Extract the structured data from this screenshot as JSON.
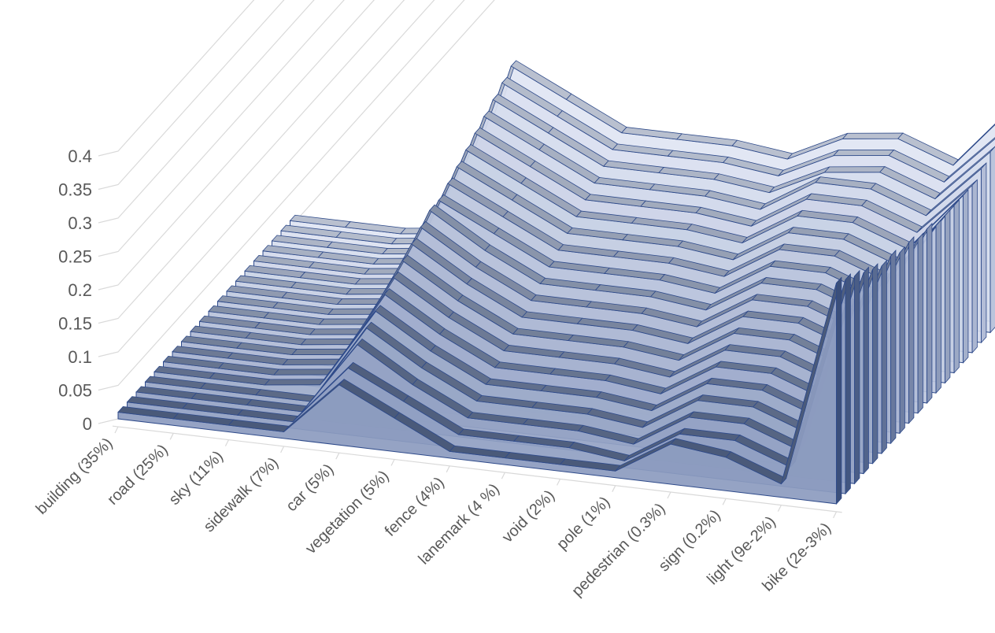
{
  "chart_data": {
    "type": "area",
    "subtype": "3d-area",
    "title": "",
    "xlabel": "",
    "ylabel": "",
    "categories": [
      "building (35%)",
      "road (25%)",
      "sky (11%)",
      "sidewalk (7%)",
      "car (5%)",
      "vegetation (5%)",
      "fence  (4%)",
      "lanemark (4 %)",
      "void (2%)",
      "pole (1%)",
      "pedestrian (0.3%)",
      "sign (0.2%)",
      "light (9e-2%)",
      "bike (2e-3%)"
    ],
    "y_ticks": [
      "0",
      "0.05",
      "0.1",
      "0.15",
      "0.2",
      "0.25",
      "0.3",
      "0.35",
      "0.4"
    ],
    "ylim": [
      0,
      0.4
    ],
    "grid": true,
    "legend": "none",
    "series_count": 20,
    "series": [
      {
        "values": [
          0.01,
          0.01,
          0.01,
          0.01,
          0.09,
          0.05,
          0.01,
          0.01,
          0.01,
          0.01,
          0.06,
          0.05,
          0.02,
          0.33
        ]
      },
      {
        "values": [
          0.01,
          0.01,
          0.01,
          0.01,
          0.1,
          0.06,
          0.02,
          0.02,
          0.02,
          0.01,
          0.06,
          0.06,
          0.03,
          0.32
        ]
      },
      {
        "values": [
          0.01,
          0.01,
          0.01,
          0.01,
          0.12,
          0.07,
          0.03,
          0.03,
          0.03,
          0.02,
          0.07,
          0.07,
          0.04,
          0.31
        ]
      },
      {
        "values": [
          0.01,
          0.01,
          0.01,
          0.01,
          0.13,
          0.08,
          0.04,
          0.04,
          0.04,
          0.03,
          0.08,
          0.08,
          0.05,
          0.3
        ]
      },
      {
        "values": [
          0.01,
          0.01,
          0.01,
          0.02,
          0.14,
          0.09,
          0.05,
          0.05,
          0.05,
          0.04,
          0.09,
          0.09,
          0.06,
          0.29
        ]
      },
      {
        "values": [
          0.01,
          0.01,
          0.01,
          0.02,
          0.15,
          0.1,
          0.06,
          0.06,
          0.06,
          0.05,
          0.1,
          0.1,
          0.07,
          0.28
        ]
      },
      {
        "values": [
          0.01,
          0.01,
          0.01,
          0.02,
          0.16,
          0.11,
          0.07,
          0.07,
          0.07,
          0.06,
          0.11,
          0.11,
          0.08,
          0.28
        ]
      },
      {
        "values": [
          0.01,
          0.01,
          0.01,
          0.02,
          0.17,
          0.12,
          0.08,
          0.08,
          0.08,
          0.07,
          0.12,
          0.12,
          0.09,
          0.27
        ]
      },
      {
        "values": [
          0.01,
          0.01,
          0.01,
          0.02,
          0.18,
          0.13,
          0.09,
          0.09,
          0.09,
          0.08,
          0.13,
          0.13,
          0.1,
          0.27
        ]
      },
      {
        "values": [
          0.01,
          0.01,
          0.01,
          0.02,
          0.19,
          0.14,
          0.1,
          0.1,
          0.1,
          0.09,
          0.14,
          0.14,
          0.11,
          0.26
        ]
      },
      {
        "values": [
          0.01,
          0.01,
          0.01,
          0.02,
          0.2,
          0.15,
          0.11,
          0.11,
          0.11,
          0.1,
          0.15,
          0.15,
          0.12,
          0.26
        ]
      },
      {
        "values": [
          0.01,
          0.01,
          0.01,
          0.02,
          0.2,
          0.16,
          0.12,
          0.12,
          0.12,
          0.11,
          0.16,
          0.16,
          0.13,
          0.25
        ]
      },
      {
        "values": [
          0.01,
          0.01,
          0.01,
          0.02,
          0.21,
          0.17,
          0.13,
          0.13,
          0.13,
          0.12,
          0.17,
          0.17,
          0.14,
          0.25
        ]
      },
      {
        "values": [
          0.01,
          0.01,
          0.01,
          0.02,
          0.22,
          0.18,
          0.14,
          0.14,
          0.14,
          0.13,
          0.18,
          0.18,
          0.15,
          0.25
        ]
      },
      {
        "values": [
          0.01,
          0.01,
          0.01,
          0.02,
          0.23,
          0.19,
          0.15,
          0.15,
          0.15,
          0.14,
          0.19,
          0.19,
          0.16,
          0.25
        ]
      },
      {
        "values": [
          0.01,
          0.01,
          0.01,
          0.02,
          0.24,
          0.2,
          0.16,
          0.16,
          0.16,
          0.15,
          0.2,
          0.2,
          0.17,
          0.25
        ]
      },
      {
        "values": [
          0.01,
          0.01,
          0.01,
          0.02,
          0.25,
          0.21,
          0.17,
          0.17,
          0.17,
          0.16,
          0.21,
          0.21,
          0.18,
          0.26
        ]
      },
      {
        "values": [
          0.01,
          0.01,
          0.01,
          0.02,
          0.26,
          0.22,
          0.18,
          0.18,
          0.18,
          0.17,
          0.21,
          0.22,
          0.19,
          0.27
        ]
      },
      {
        "values": [
          0.01,
          0.01,
          0.01,
          0.02,
          0.27,
          0.23,
          0.19,
          0.19,
          0.19,
          0.18,
          0.22,
          0.23,
          0.2,
          0.28
        ]
      },
      {
        "values": [
          0.01,
          0.01,
          0.01,
          0.02,
          0.28,
          0.24,
          0.2,
          0.2,
          0.2,
          0.19,
          0.23,
          0.24,
          0.21,
          0.3
        ]
      }
    ],
    "colors": {
      "front_fill": "#8c9bbf",
      "back_fill": "#dfe5f3",
      "outline": "#2e4a8a",
      "top_edge_front": "#4a5a7a",
      "top_edge_back": "#b9c0cf",
      "gridline": "#d9d9d9",
      "text": "#595959"
    }
  }
}
